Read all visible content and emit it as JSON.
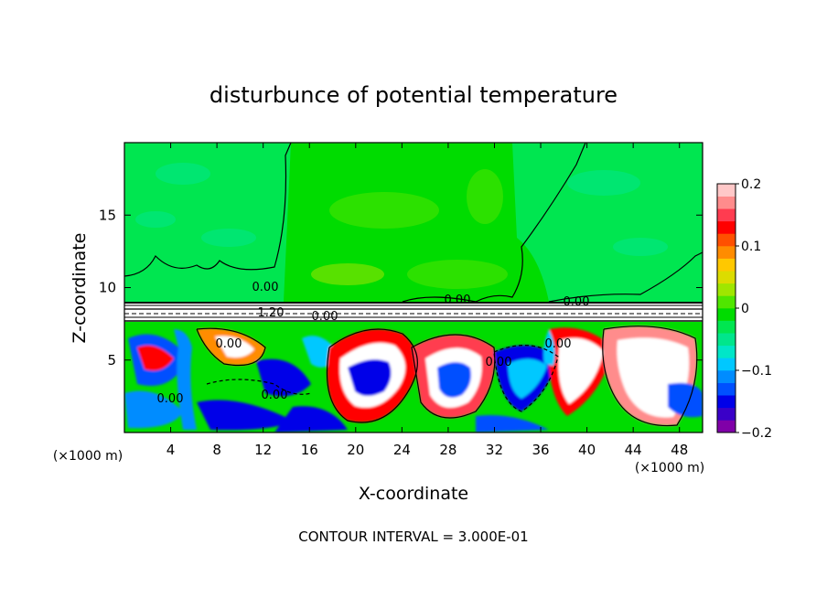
{
  "chart_data": {
    "type": "heatmap",
    "title": "disturbunce of potential temperature",
    "xlabel": "X-coordinate",
    "ylabel": "Z-coordinate",
    "x_unit": "(×1000 m)",
    "y_unit": "(×1000 m)",
    "xlim": [
      0,
      50
    ],
    "ylim": [
      0,
      20
    ],
    "x_ticks": [
      4,
      8,
      12,
      16,
      20,
      24,
      28,
      32,
      36,
      40,
      44,
      48
    ],
    "x_tick_labels": [
      "4",
      "8",
      "12",
      "16",
      "20",
      "24",
      "28",
      "32",
      "36",
      "40",
      "44",
      "48"
    ],
    "y_ticks": [
      5,
      10,
      15
    ],
    "y_tick_labels": [
      "5",
      "10",
      "15"
    ],
    "colorbar": {
      "min": -0.2,
      "max": 0.2,
      "tick_values": [
        0.2,
        0.1,
        0,
        -0.1,
        -0.2
      ],
      "tick_labels": [
        "0.2",
        "0.1",
        "0",
        "−0.1",
        "−0.2"
      ],
      "colors": [
        "#8000a8",
        "#3a00c8",
        "#0000e8",
        "#0050ff",
        "#008cff",
        "#00c8ff",
        "#00e6c8",
        "#00e68c",
        "#00e650",
        "#00dc00",
        "#50e600",
        "#a0e600",
        "#dcdc00",
        "#ffc800",
        "#ff8c00",
        "#ff5000",
        "#ff0000",
        "#ff3c50",
        "#ff8c8c",
        "#ffc8c8"
      ]
    },
    "contour_labels": [
      "0.00",
      "1.20",
      "0.00",
      "0.00",
      "0.00",
      "0.00",
      "0.00",
      "0.00",
      "0.00",
      "0.00"
    ],
    "footer": "CONTOUR INTERVAL = 3.000E-01"
  }
}
